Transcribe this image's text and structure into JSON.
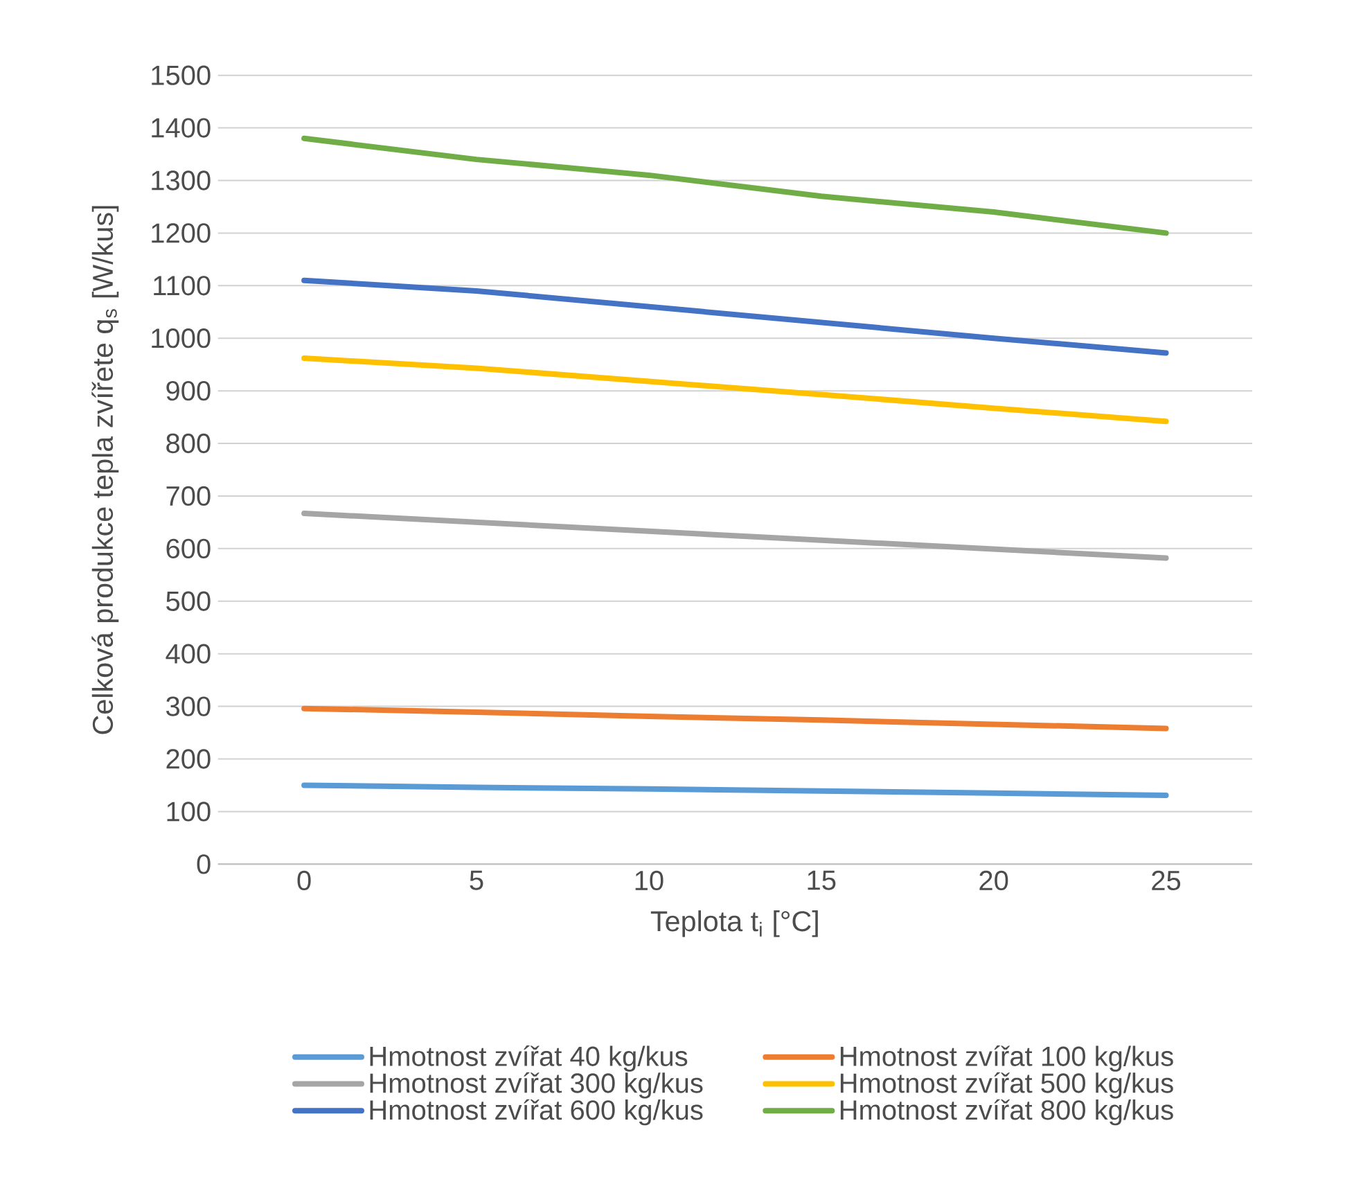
{
  "chart_data": {
    "type": "line",
    "xlabel": "Teplota t$_{i}$ [°C]",
    "ylabel": "Celková produkce tepla zvířete q$_{s}$ [W/kus]",
    "categories": [
      "0",
      "5",
      "10",
      "15",
      "20",
      "25"
    ],
    "series": [
      {
        "name": "Hmotnost zvířat 40 kg/kus",
        "color": "#5b9bd5",
        "values": [
          150,
          146,
          143,
          139,
          135,
          131
        ]
      },
      {
        "name": "Hmotnost zvířat 100 kg/kus",
        "color": "#ed7d31",
        "values": [
          296,
          289,
          281,
          274,
          266,
          258
        ]
      },
      {
        "name": "Hmotnost zvířat 300 kg/kus",
        "color": "#a5a5a5",
        "values": [
          667,
          650,
          633,
          616,
          599,
          582
        ]
      },
      {
        "name": "Hmotnost zvířat 500 kg/kus",
        "color": "#ffc000",
        "values": [
          962,
          943,
          918,
          893,
          867,
          842
        ]
      },
      {
        "name": "Hmotnost zvířat 600 kg/kus",
        "color": "#4472c4",
        "values": [
          1110,
          1090,
          1060,
          1030,
          1000,
          972
        ]
      },
      {
        "name": "Hmotnost zvířat 800 kg/kus",
        "color": "#70ad47",
        "values": [
          1380,
          1340,
          1310,
          1270,
          1240,
          1200
        ]
      }
    ],
    "ylim": [
      0,
      1500
    ],
    "yticks": [
      0,
      100,
      200,
      300,
      400,
      500,
      600,
      700,
      800,
      900,
      1000,
      1100,
      1200,
      1300,
      1400,
      1500
    ],
    "grid": "y",
    "legend": "bottom",
    "marker": "none",
    "line_style": "solid"
  }
}
